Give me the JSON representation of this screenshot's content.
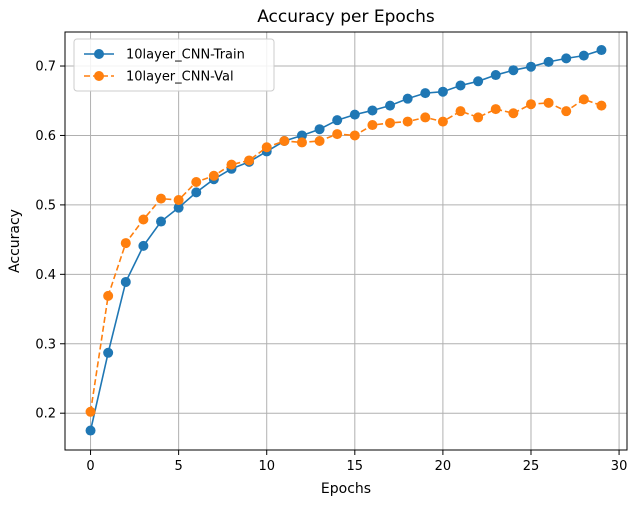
{
  "chart_data": {
    "type": "line",
    "title": "Accuracy per Epochs",
    "xlabel": "Epochs",
    "ylabel": "Accuracy",
    "xlim": [
      -1.45,
      30.45
    ],
    "ylim": [
      0.147,
      0.749
    ],
    "xticks": [
      0,
      5,
      10,
      15,
      20,
      25,
      30
    ],
    "yticks": [
      0.2,
      0.3,
      0.4,
      0.5,
      0.6,
      0.7
    ],
    "grid": true,
    "legend_position": "upper-left",
    "x": [
      0,
      1,
      2,
      3,
      4,
      5,
      6,
      7,
      8,
      9,
      10,
      11,
      12,
      13,
      14,
      15,
      16,
      17,
      18,
      19,
      20,
      21,
      22,
      23,
      24,
      25,
      26,
      27,
      28,
      29
    ],
    "series": [
      {
        "name": "10layer_CNN-Train",
        "color": "#1f77b4",
        "style": "solid",
        "values": [
          0.175,
          0.287,
          0.389,
          0.441,
          0.476,
          0.496,
          0.518,
          0.537,
          0.552,
          0.562,
          0.577,
          0.592,
          0.6,
          0.609,
          0.622,
          0.63,
          0.636,
          0.643,
          0.653,
          0.661,
          0.663,
          0.672,
          0.678,
          0.687,
          0.694,
          0.699,
          0.706,
          0.711,
          0.715,
          0.723
        ]
      },
      {
        "name": "10layer_CNN-Val",
        "color": "#ff7f0e",
        "style": "dashed",
        "values": [
          0.202,
          0.369,
          0.445,
          0.479,
          0.509,
          0.507,
          0.533,
          0.542,
          0.558,
          0.564,
          0.583,
          0.592,
          0.59,
          0.592,
          0.602,
          0.6,
          0.615,
          0.618,
          0.62,
          0.626,
          0.62,
          0.635,
          0.626,
          0.638,
          0.632,
          0.645,
          0.647,
          0.635,
          0.652,
          0.643
        ]
      }
    ]
  }
}
